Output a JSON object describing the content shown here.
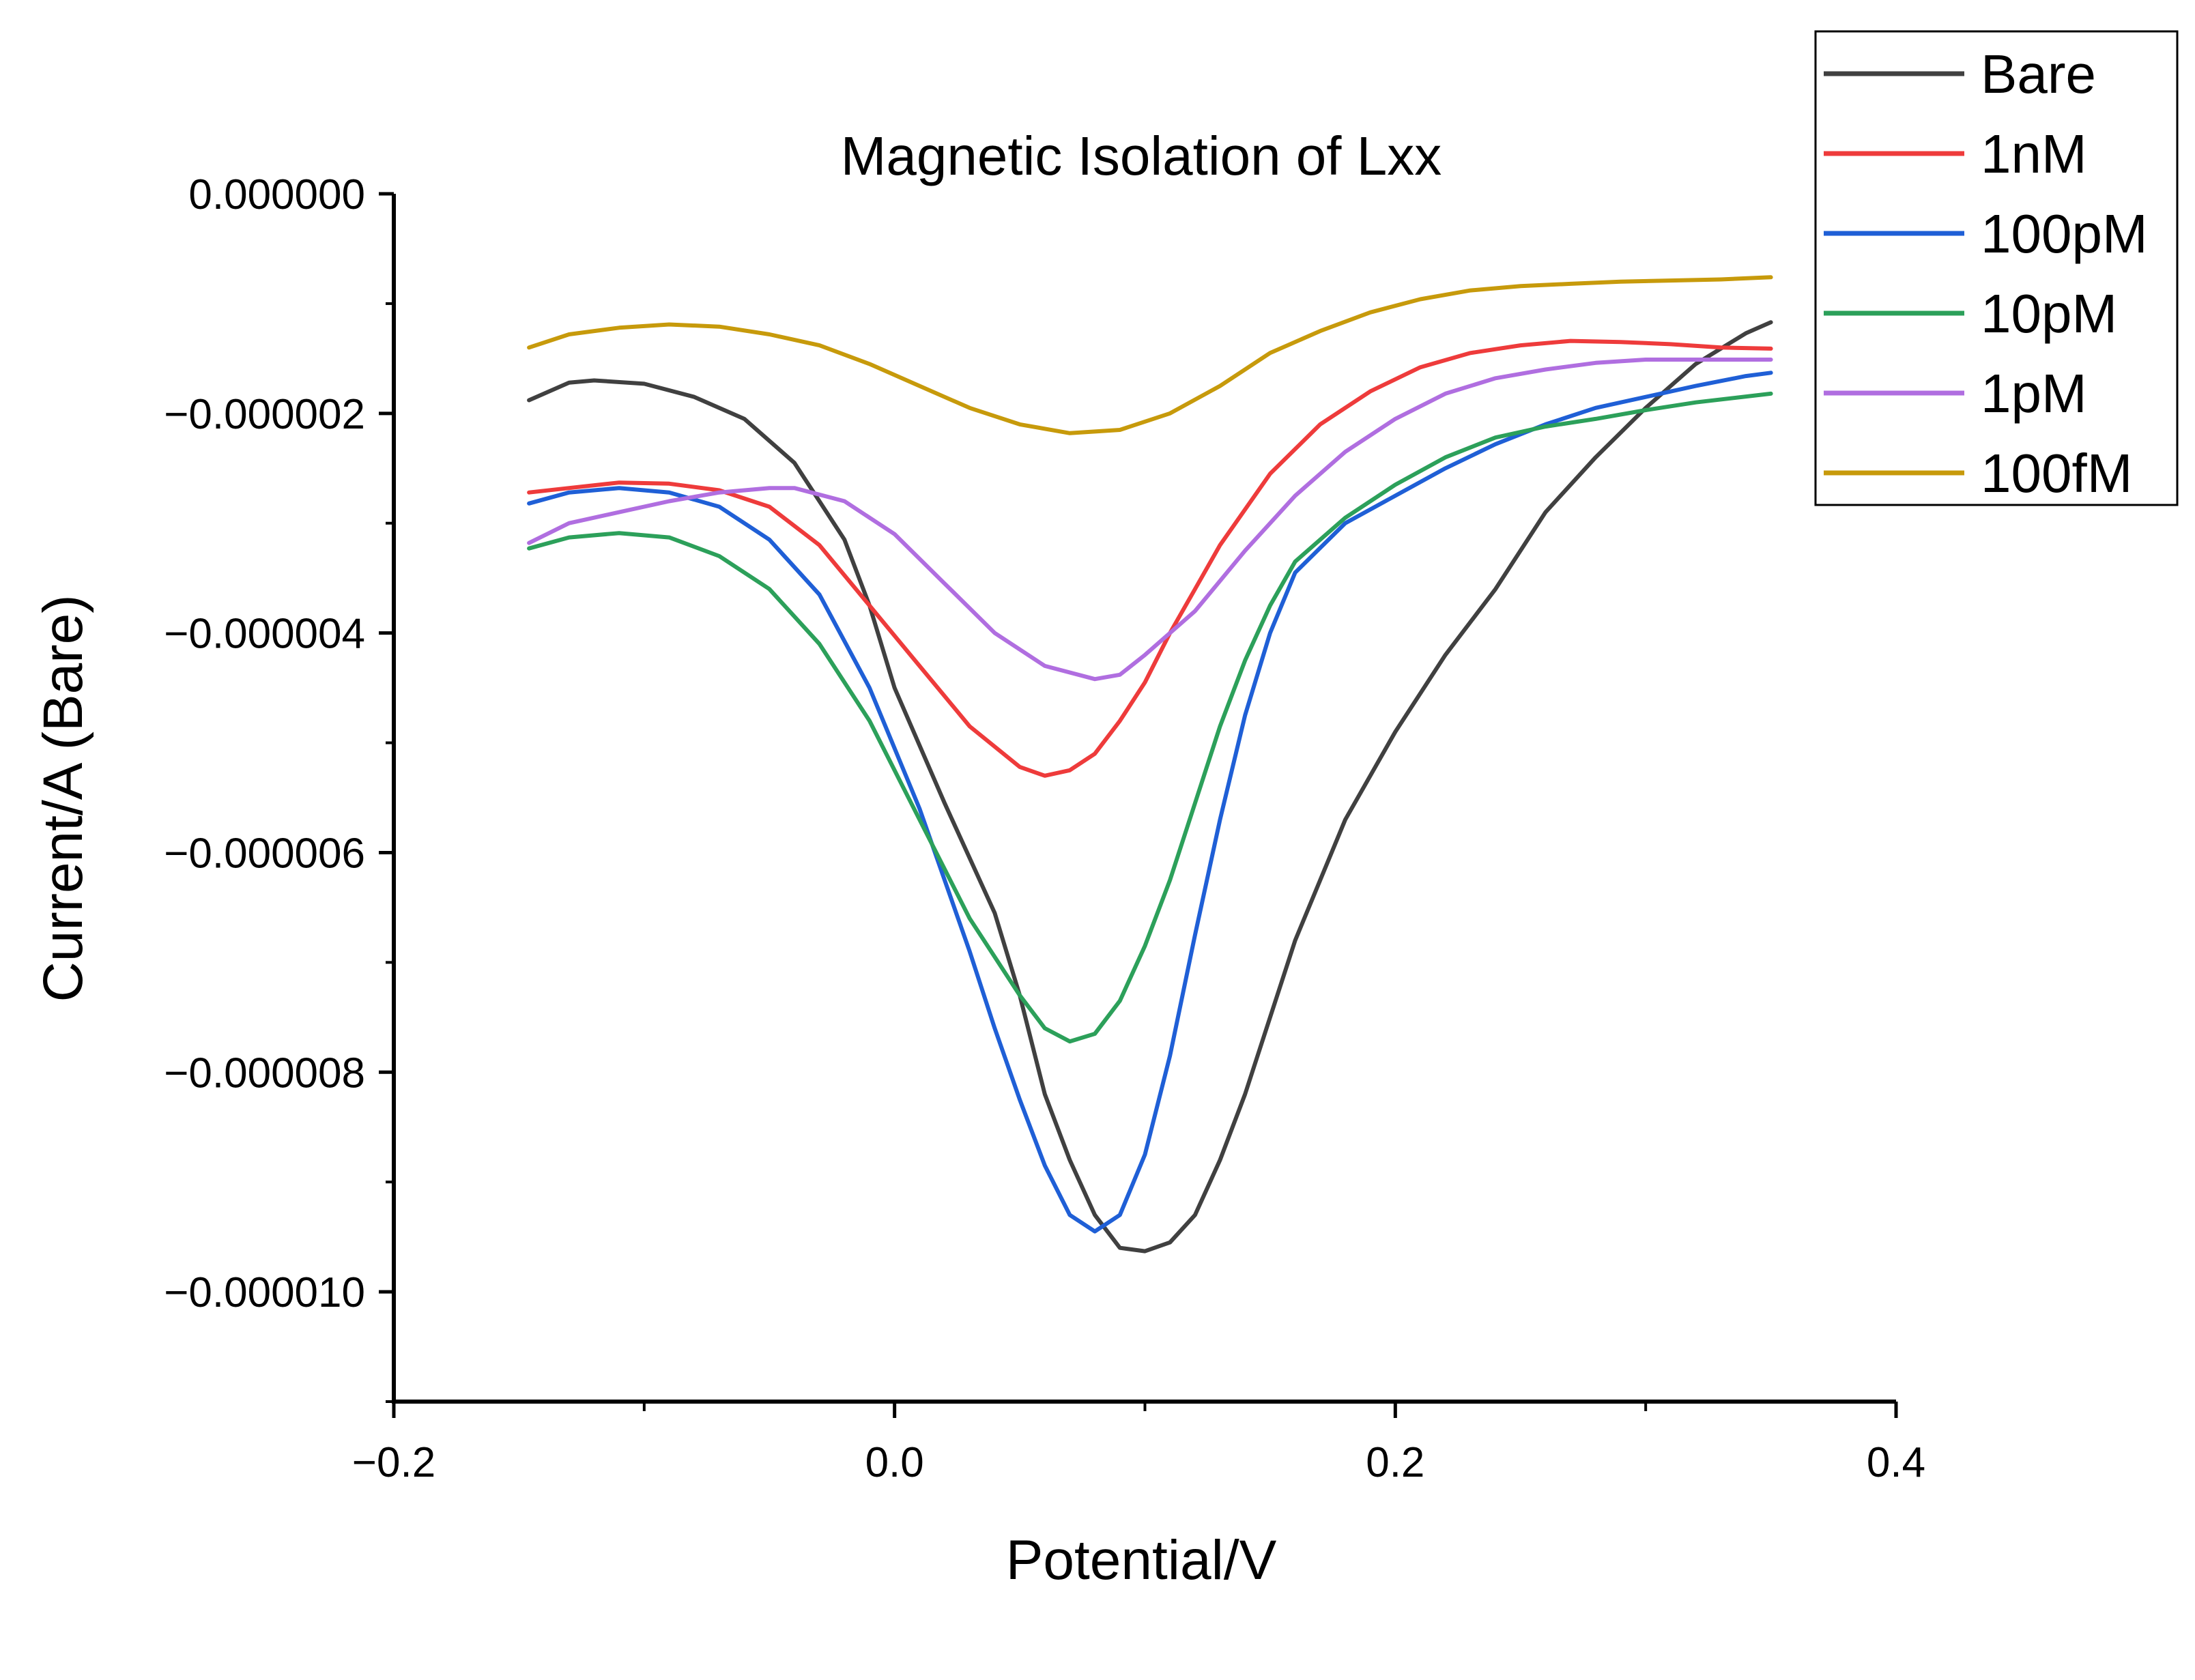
{
  "chart_data": {
    "type": "line",
    "title": "Magnetic Isolation of Lxx",
    "xlabel": "Potential/V",
    "ylabel": "Current/A (Bare)",
    "xlim": [
      -0.2,
      0.4
    ],
    "ylim": [
      -1.1e-05,
      0.0
    ],
    "x_ticks": [
      -0.2,
      0.0,
      0.2,
      0.4
    ],
    "x_tick_labels": [
      "−0.2",
      "0.0",
      "0.2",
      "0.4"
    ],
    "y_ticks": [
      0.0,
      -2e-06,
      -4e-06,
      -6e-06,
      -8e-06,
      -1e-05
    ],
    "y_tick_labels": [
      "0.000000",
      "−0.000002",
      "−0.000004",
      "−0.000006",
      "−0.000008",
      "−0.000010"
    ],
    "grid": false,
    "legend_position": "top-right",
    "series": [
      {
        "name": "Bare",
        "color": "#404040",
        "points": [
          [
            -0.146,
            -1.88e-06
          ],
          [
            -0.13,
            -1.72e-06
          ],
          [
            -0.12,
            -1.7e-06
          ],
          [
            -0.1,
            -1.73e-06
          ],
          [
            -0.08,
            -1.85e-06
          ],
          [
            -0.06,
            -2.05e-06
          ],
          [
            -0.04,
            -2.45e-06
          ],
          [
            -0.02,
            -3.15e-06
          ],
          [
            -0.01,
            -3.75e-06
          ],
          [
            0.0,
            -4.5e-06
          ],
          [
            0.02,
            -5.55e-06
          ],
          [
            0.04,
            -6.55e-06
          ],
          [
            0.05,
            -7.3e-06
          ],
          [
            0.06,
            -8.2e-06
          ],
          [
            0.07,
            -8.8e-06
          ],
          [
            0.08,
            -9.3e-06
          ],
          [
            0.09,
            -9.6e-06
          ],
          [
            0.1,
            -9.63e-06
          ],
          [
            0.11,
            -9.55e-06
          ],
          [
            0.12,
            -9.3e-06
          ],
          [
            0.13,
            -8.8e-06
          ],
          [
            0.14,
            -8.2e-06
          ],
          [
            0.15,
            -7.5e-06
          ],
          [
            0.16,
            -6.8e-06
          ],
          [
            0.18,
            -5.7e-06
          ],
          [
            0.2,
            -4.9e-06
          ],
          [
            0.22,
            -4.2e-06
          ],
          [
            0.24,
            -3.6e-06
          ],
          [
            0.26,
            -2.9e-06
          ],
          [
            0.28,
            -2.4e-06
          ],
          [
            0.3,
            -1.95e-06
          ],
          [
            0.32,
            -1.55e-06
          ],
          [
            0.34,
            -1.27e-06
          ],
          [
            0.35,
            -1.17e-06
          ]
        ]
      },
      {
        "name": "1nM",
        "color": "#ee3b3b",
        "points": [
          [
            -0.146,
            -2.72e-06
          ],
          [
            -0.13,
            -2.68e-06
          ],
          [
            -0.11,
            -2.63e-06
          ],
          [
            -0.09,
            -2.64e-06
          ],
          [
            -0.07,
            -2.7e-06
          ],
          [
            -0.05,
            -2.85e-06
          ],
          [
            -0.03,
            -3.2e-06
          ],
          [
            -0.01,
            -3.75e-06
          ],
          [
            0.01,
            -4.3e-06
          ],
          [
            0.03,
            -4.85e-06
          ],
          [
            0.05,
            -5.22e-06
          ],
          [
            0.06,
            -5.3e-06
          ],
          [
            0.07,
            -5.25e-06
          ],
          [
            0.08,
            -5.1e-06
          ],
          [
            0.09,
            -4.8e-06
          ],
          [
            0.1,
            -4.45e-06
          ],
          [
            0.11,
            -4e-06
          ],
          [
            0.12,
            -3.6e-06
          ],
          [
            0.13,
            -3.2e-06
          ],
          [
            0.15,
            -2.55e-06
          ],
          [
            0.17,
            -2.1e-06
          ],
          [
            0.19,
            -1.8e-06
          ],
          [
            0.21,
            -1.58e-06
          ],
          [
            0.23,
            -1.45e-06
          ],
          [
            0.25,
            -1.38e-06
          ],
          [
            0.27,
            -1.34e-06
          ],
          [
            0.29,
            -1.35e-06
          ],
          [
            0.31,
            -1.37e-06
          ],
          [
            0.33,
            -1.4e-06
          ],
          [
            0.35,
            -1.41e-06
          ]
        ]
      },
      {
        "name": "100pM",
        "color": "#1f5fd6",
        "points": [
          [
            -0.146,
            -2.82e-06
          ],
          [
            -0.13,
            -2.72e-06
          ],
          [
            -0.11,
            -2.68e-06
          ],
          [
            -0.09,
            -2.72e-06
          ],
          [
            -0.07,
            -2.85e-06
          ],
          [
            -0.05,
            -3.15e-06
          ],
          [
            -0.03,
            -3.65e-06
          ],
          [
            -0.01,
            -4.5e-06
          ],
          [
            0.01,
            -5.6e-06
          ],
          [
            0.03,
            -6.9e-06
          ],
          [
            0.04,
            -7.6e-06
          ],
          [
            0.05,
            -8.25e-06
          ],
          [
            0.06,
            -8.85e-06
          ],
          [
            0.07,
            -9.3e-06
          ],
          [
            0.08,
            -9.45e-06
          ],
          [
            0.09,
            -9.3e-06
          ],
          [
            0.1,
            -8.75e-06
          ],
          [
            0.11,
            -7.85e-06
          ],
          [
            0.12,
            -6.75e-06
          ],
          [
            0.13,
            -5.7e-06
          ],
          [
            0.14,
            -4.75e-06
          ],
          [
            0.15,
            -4e-06
          ],
          [
            0.16,
            -3.45e-06
          ],
          [
            0.18,
            -3e-06
          ],
          [
            0.2,
            -2.75e-06
          ],
          [
            0.22,
            -2.5e-06
          ],
          [
            0.24,
            -2.28e-06
          ],
          [
            0.26,
            -2.1e-06
          ],
          [
            0.28,
            -1.95e-06
          ],
          [
            0.3,
            -1.85e-06
          ],
          [
            0.32,
            -1.75e-06
          ],
          [
            0.34,
            -1.66e-06
          ],
          [
            0.35,
            -1.63e-06
          ]
        ]
      },
      {
        "name": "10pM",
        "color": "#2ca05a",
        "points": [
          [
            -0.146,
            -3.23e-06
          ],
          [
            -0.13,
            -3.13e-06
          ],
          [
            -0.11,
            -3.09e-06
          ],
          [
            -0.09,
            -3.13e-06
          ],
          [
            -0.07,
            -3.3e-06
          ],
          [
            -0.05,
            -3.6e-06
          ],
          [
            -0.03,
            -4.1e-06
          ],
          [
            -0.01,
            -4.8e-06
          ],
          [
            0.01,
            -5.7e-06
          ],
          [
            0.03,
            -6.6e-06
          ],
          [
            0.05,
            -7.3e-06
          ],
          [
            0.06,
            -7.6e-06
          ],
          [
            0.07,
            -7.72e-06
          ],
          [
            0.08,
            -7.65e-06
          ],
          [
            0.09,
            -7.35e-06
          ],
          [
            0.1,
            -6.85e-06
          ],
          [
            0.11,
            -6.25e-06
          ],
          [
            0.12,
            -5.55e-06
          ],
          [
            0.13,
            -4.85e-06
          ],
          [
            0.14,
            -4.25e-06
          ],
          [
            0.15,
            -3.75e-06
          ],
          [
            0.16,
            -3.35e-06
          ],
          [
            0.18,
            -2.95e-06
          ],
          [
            0.2,
            -2.65e-06
          ],
          [
            0.22,
            -2.4e-06
          ],
          [
            0.24,
            -2.22e-06
          ],
          [
            0.26,
            -2.12e-06
          ],
          [
            0.28,
            -2.05e-06
          ],
          [
            0.3,
            -1.97e-06
          ],
          [
            0.32,
            -1.9e-06
          ],
          [
            0.35,
            -1.82e-06
          ]
        ]
      },
      {
        "name": "1pM",
        "color": "#b06ee0",
        "points": [
          [
            -0.146,
            -3.18e-06
          ],
          [
            -0.13,
            -3e-06
          ],
          [
            -0.11,
            -2.9e-06
          ],
          [
            -0.09,
            -2.8e-06
          ],
          [
            -0.07,
            -2.72e-06
          ],
          [
            -0.05,
            -2.68e-06
          ],
          [
            -0.04,
            -2.68e-06
          ],
          [
            -0.02,
            -2.8e-06
          ],
          [
            0.0,
            -3.1e-06
          ],
          [
            0.02,
            -3.55e-06
          ],
          [
            0.04,
            -4e-06
          ],
          [
            0.06,
            -4.3e-06
          ],
          [
            0.08,
            -4.42e-06
          ],
          [
            0.09,
            -4.38e-06
          ],
          [
            0.1,
            -4.2e-06
          ],
          [
            0.12,
            -3.8e-06
          ],
          [
            0.14,
            -3.25e-06
          ],
          [
            0.16,
            -2.75e-06
          ],
          [
            0.18,
            -2.35e-06
          ],
          [
            0.2,
            -2.05e-06
          ],
          [
            0.22,
            -1.82e-06
          ],
          [
            0.24,
            -1.68e-06
          ],
          [
            0.26,
            -1.6e-06
          ],
          [
            0.28,
            -1.54e-06
          ],
          [
            0.3,
            -1.51e-06
          ],
          [
            0.32,
            -1.51e-06
          ],
          [
            0.35,
            -1.51e-06
          ]
        ]
      },
      {
        "name": "100fM",
        "color": "#c79a0b",
        "points": [
          [
            -0.146,
            -1.4e-06
          ],
          [
            -0.13,
            -1.28e-06
          ],
          [
            -0.11,
            -1.22e-06
          ],
          [
            -0.09,
            -1.19e-06
          ],
          [
            -0.07,
            -1.21e-06
          ],
          [
            -0.05,
            -1.28e-06
          ],
          [
            -0.03,
            -1.38e-06
          ],
          [
            -0.01,
            -1.55e-06
          ],
          [
            0.01,
            -1.75e-06
          ],
          [
            0.03,
            -1.95e-06
          ],
          [
            0.05,
            -2.1e-06
          ],
          [
            0.07,
            -2.18e-06
          ],
          [
            0.09,
            -2.15e-06
          ],
          [
            0.11,
            -2e-06
          ],
          [
            0.13,
            -1.75e-06
          ],
          [
            0.15,
            -1.45e-06
          ],
          [
            0.17,
            -1.25e-06
          ],
          [
            0.19,
            -1.08e-06
          ],
          [
            0.21,
            -9.6e-07
          ],
          [
            0.23,
            -8.8e-07
          ],
          [
            0.25,
            -8.4e-07
          ],
          [
            0.27,
            -8.2e-07
          ],
          [
            0.29,
            -8e-07
          ],
          [
            0.31,
            -7.9e-07
          ],
          [
            0.33,
            -7.8e-07
          ],
          [
            0.35,
            -7.6e-07
          ]
        ]
      }
    ]
  }
}
